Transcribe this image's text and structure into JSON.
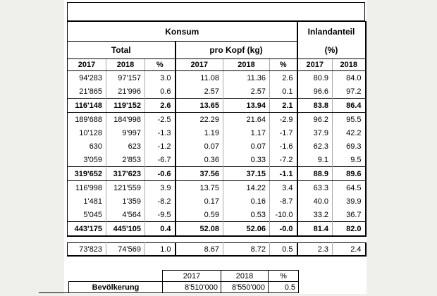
{
  "colors": {
    "matte_background": "#efefec",
    "sheet_background": "#ffffff",
    "border": "#000000",
    "gridline": "#a8a8a8",
    "text": "#000000"
  },
  "table": {
    "group_headers": {
      "konsum": "Konsum",
      "inlandanteil": "Inlandanteil"
    },
    "sub_headers": {
      "total": "Total",
      "pro_kopf": "pro Kopf (kg)",
      "inland_unit": "(%)"
    },
    "year_headers": [
      "2017",
      "2018",
      "%",
      "2017",
      "2018",
      "%",
      "2017",
      "2018"
    ],
    "rows": [
      {
        "style": "normal",
        "cells": [
          "94'283",
          "97'157",
          "3.0",
          "11.08",
          "11.36",
          "2.6",
          "80.9",
          "84.0"
        ]
      },
      {
        "style": "normal",
        "cells": [
          "21'865",
          "21'996",
          "0.6",
          "2.57",
          "2.57",
          "0.1",
          "96.6",
          "97.2"
        ]
      },
      {
        "style": "subtotal",
        "cells": [
          "116'148",
          "119'152",
          "2.6",
          "13.65",
          "13.94",
          "2.1",
          "83.8",
          "86.4"
        ]
      },
      {
        "style": "normal",
        "cells": [
          "189'688",
          "184'998",
          "-2.5",
          "22.29",
          "21.64",
          "-2.9",
          "96.2",
          "95.5"
        ]
      },
      {
        "style": "normal",
        "cells": [
          "10'128",
          "9'997",
          "-1.3",
          "1.19",
          "1.17",
          "-1.7",
          "37.9",
          "42.2"
        ]
      },
      {
        "style": "normal",
        "cells": [
          "630",
          "623",
          "-1.2",
          "0.07",
          "0.07",
          "-1.6",
          "62.3",
          "69.3"
        ]
      },
      {
        "style": "normal",
        "cells": [
          "3'059",
          "2'853",
          "-6.7",
          "0.36",
          "0.33",
          "-7.2",
          "9.1",
          "9.5"
        ]
      },
      {
        "style": "subtotal",
        "cells": [
          "319'652",
          "317'623",
          "-0.6",
          "37.56",
          "37.15",
          "-1.1",
          "88.9",
          "89.6"
        ]
      },
      {
        "style": "normal",
        "cells": [
          "116'998",
          "121'559",
          "3.9",
          "13.75",
          "14.22",
          "3.4",
          "63.3",
          "64.5"
        ]
      },
      {
        "style": "normal",
        "cells": [
          "1'481",
          "1'359",
          "-8.2",
          "0.17",
          "0.16",
          "-8.7",
          "40.0",
          "39.9"
        ]
      },
      {
        "style": "normal",
        "cells": [
          "5'045",
          "4'564",
          "-9.5",
          "0.59",
          "0.53",
          "-10.0",
          "33.2",
          "36.7"
        ]
      },
      {
        "style": "total",
        "cells": [
          "443'175",
          "445'105",
          "0.4",
          "52.08",
          "52.06",
          "-0.0",
          "81.4",
          "82.0"
        ]
      }
    ]
  },
  "extra_row": {
    "rows": [
      {
        "style": "normal",
        "cells": [
          "73'823",
          "74'569",
          "1.0",
          "8.67",
          "8.72",
          "0.5",
          "2.3",
          "2.4"
        ]
      }
    ]
  },
  "population_table": {
    "headers": [
      "2017",
      "2018",
      "%"
    ],
    "label": "Bevölkerung",
    "values": [
      "8'510'000",
      "8'550'000",
      "0.5"
    ]
  }
}
